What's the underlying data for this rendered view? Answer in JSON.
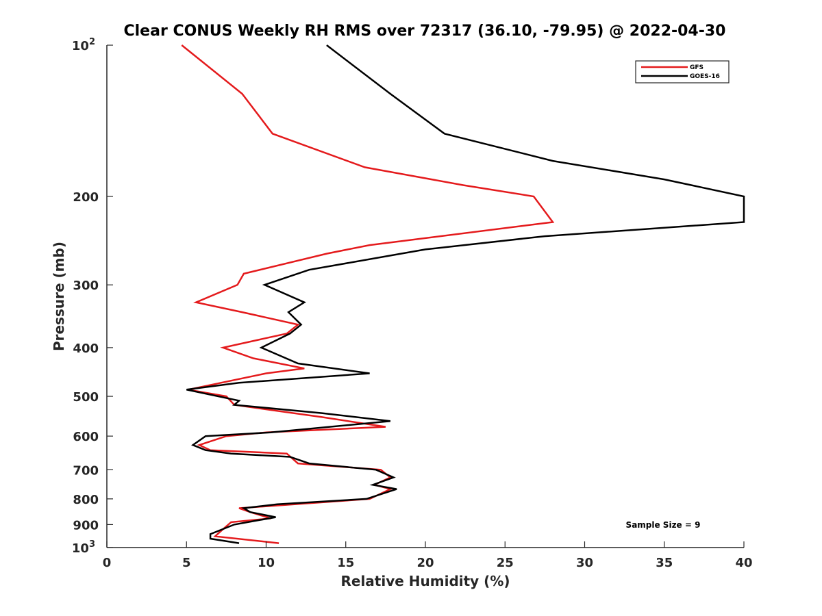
{
  "chart_data": {
    "type": "line",
    "title": "Clear CONUS Weekly RH RMS over 72317 (36.10, -79.95) @ 2022-04-30",
    "xlabel": "Relative Humidity (%)",
    "ylabel": "Pressure (mb)",
    "xlim": [
      0,
      40
    ],
    "ylim": [
      100,
      1000
    ],
    "y_scale": "log",
    "y_reversed": true,
    "grid": false,
    "legend_position": "top-right",
    "x_ticks": [
      0,
      5,
      10,
      15,
      20,
      25,
      30,
      35,
      40
    ],
    "x_tick_labels": [
      "0",
      "5",
      "10",
      "15",
      "20",
      "25",
      "30",
      "35",
      "40"
    ],
    "y_ticks": [
      100,
      200,
      300,
      400,
      500,
      600,
      700,
      800,
      900,
      1000
    ],
    "y_tick_labels": [
      {
        "base": "10",
        "exp": "2"
      },
      {
        "base": "200",
        "exp": ""
      },
      {
        "base": "300",
        "exp": ""
      },
      {
        "base": "400",
        "exp": ""
      },
      {
        "base": "500",
        "exp": ""
      },
      {
        "base": "600",
        "exp": ""
      },
      {
        "base": "700",
        "exp": ""
      },
      {
        "base": "800",
        "exp": ""
      },
      {
        "base": "900",
        "exp": ""
      },
      {
        "base": "10",
        "exp": "3"
      }
    ],
    "annotation": "Sample Size = 9",
    "series": [
      {
        "name": "GFS",
        "color": "#e41a1c",
        "points": [
          [
            4.7,
            100
          ],
          [
            8.5,
            125
          ],
          [
            10.4,
            150
          ],
          [
            16.2,
            175
          ],
          [
            22.4,
            190
          ],
          [
            26.8,
            200
          ],
          [
            28.0,
            225
          ],
          [
            16.5,
            250
          ],
          [
            13.8,
            260
          ],
          [
            8.6,
            285
          ],
          [
            8.2,
            300
          ],
          [
            5.6,
            325
          ],
          [
            8.5,
            340
          ],
          [
            12.0,
            360
          ],
          [
            11.3,
            375
          ],
          [
            7.3,
            400
          ],
          [
            9.2,
            420
          ],
          [
            12.4,
            440
          ],
          [
            10.0,
            450
          ],
          [
            5.1,
            485
          ],
          [
            7.5,
            500
          ],
          [
            8.0,
            520
          ],
          [
            13.5,
            550
          ],
          [
            17.5,
            575
          ],
          [
            10.0,
            590
          ],
          [
            7.5,
            600
          ],
          [
            5.8,
            625
          ],
          [
            6.5,
            640
          ],
          [
            11.3,
            650
          ],
          [
            12.0,
            680
          ],
          [
            17.2,
            700
          ],
          [
            17.8,
            725
          ],
          [
            16.8,
            750
          ],
          [
            17.8,
            765
          ],
          [
            16.5,
            800
          ],
          [
            8.3,
            835
          ],
          [
            9.0,
            850
          ],
          [
            10.3,
            875
          ],
          [
            7.8,
            890
          ],
          [
            7.2,
            925
          ],
          [
            6.8,
            950
          ],
          [
            10.8,
            980
          ]
        ]
      },
      {
        "name": "GOES-16",
        "color": "#000000",
        "points": [
          [
            13.8,
            100
          ],
          [
            17.8,
            125
          ],
          [
            21.2,
            150
          ],
          [
            28.0,
            170
          ],
          [
            35.0,
            185
          ],
          [
            40.0,
            200
          ],
          [
            40.0,
            225
          ],
          [
            27.5,
            240
          ],
          [
            20.0,
            255
          ],
          [
            12.7,
            280
          ],
          [
            9.9,
            300
          ],
          [
            12.4,
            325
          ],
          [
            11.4,
            340
          ],
          [
            12.2,
            360
          ],
          [
            11.5,
            375
          ],
          [
            9.7,
            400
          ],
          [
            12.0,
            430
          ],
          [
            16.5,
            450
          ],
          [
            8.3,
            470
          ],
          [
            5.0,
            485
          ],
          [
            8.3,
            510
          ],
          [
            8.0,
            520
          ],
          [
            13.5,
            540
          ],
          [
            17.8,
            560
          ],
          [
            10.3,
            590
          ],
          [
            6.2,
            600
          ],
          [
            5.4,
            625
          ],
          [
            6.2,
            640
          ],
          [
            7.8,
            650
          ],
          [
            11.5,
            660
          ],
          [
            12.7,
            680
          ],
          [
            16.9,
            700
          ],
          [
            18.0,
            725
          ],
          [
            16.7,
            750
          ],
          [
            18.2,
            765
          ],
          [
            16.3,
            800
          ],
          [
            10.7,
            820
          ],
          [
            8.6,
            835
          ],
          [
            9.0,
            850
          ],
          [
            10.6,
            870
          ],
          [
            8.0,
            900
          ],
          [
            6.5,
            940
          ],
          [
            6.5,
            960
          ],
          [
            8.3,
            980
          ]
        ]
      }
    ]
  }
}
